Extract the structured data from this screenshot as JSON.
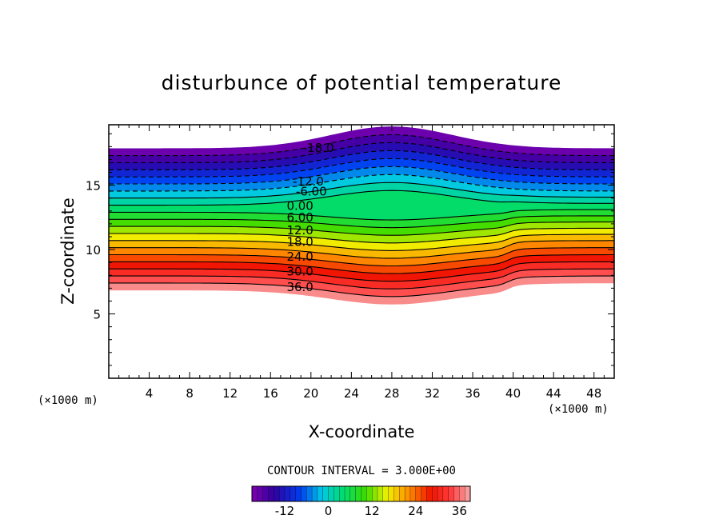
{
  "chart_data": {
    "type": "contour",
    "title": "disturbunce of potential temperature",
    "xlabel": "X-coordinate",
    "ylabel": "Z-coordinate",
    "x_unit": "(×1000 m)",
    "y_unit": "(×1000 m)",
    "xlim": [
      0,
      50
    ],
    "ylim": [
      0,
      19.7
    ],
    "x_ticks": [
      4,
      8,
      12,
      16,
      20,
      24,
      28,
      32,
      36,
      40,
      44,
      48
    ],
    "x_tick_labels": [
      "4",
      "8",
      "12",
      "16",
      "20",
      "24",
      "28",
      "32",
      "36",
      "40",
      "44",
      "48"
    ],
    "y_ticks": [
      5,
      10,
      15
    ],
    "y_tick_labels": [
      "5",
      "10",
      "15"
    ],
    "contour_interval_text": "CONTOUR INTERVAL = 3.000E+00",
    "contour_interval": 3,
    "level_min": -21,
    "level_max": 39,
    "contour_labels": [
      {
        "text": "-18.0",
        "x": 19.2,
        "z": 17.9
      },
      {
        "text": "-12.0",
        "x": 18.2,
        "z": 15.3
      },
      {
        "text": "-6.00",
        "x": 18.5,
        "z": 14.5
      },
      {
        "text": "0.00",
        "x": 17.6,
        "z": 13.4
      },
      {
        "text": "6.00",
        "x": 17.6,
        "z": 12.5
      },
      {
        "text": "12.0",
        "x": 17.6,
        "z": 11.5
      },
      {
        "text": "18.0",
        "x": 17.6,
        "z": 10.6
      },
      {
        "text": "24.0",
        "x": 17.6,
        "z": 9.45
      },
      {
        "text": "30.0",
        "x": 17.6,
        "z": 8.3
      },
      {
        "text": "36.0",
        "x": 17.6,
        "z": 7.1
      }
    ],
    "colorbar": {
      "tick_labels": [
        "-12",
        "0",
        "12",
        "24",
        "36"
      ],
      "tick_values": [
        -12,
        0,
        12,
        24,
        36
      ],
      "min": -21,
      "max": 39
    }
  }
}
